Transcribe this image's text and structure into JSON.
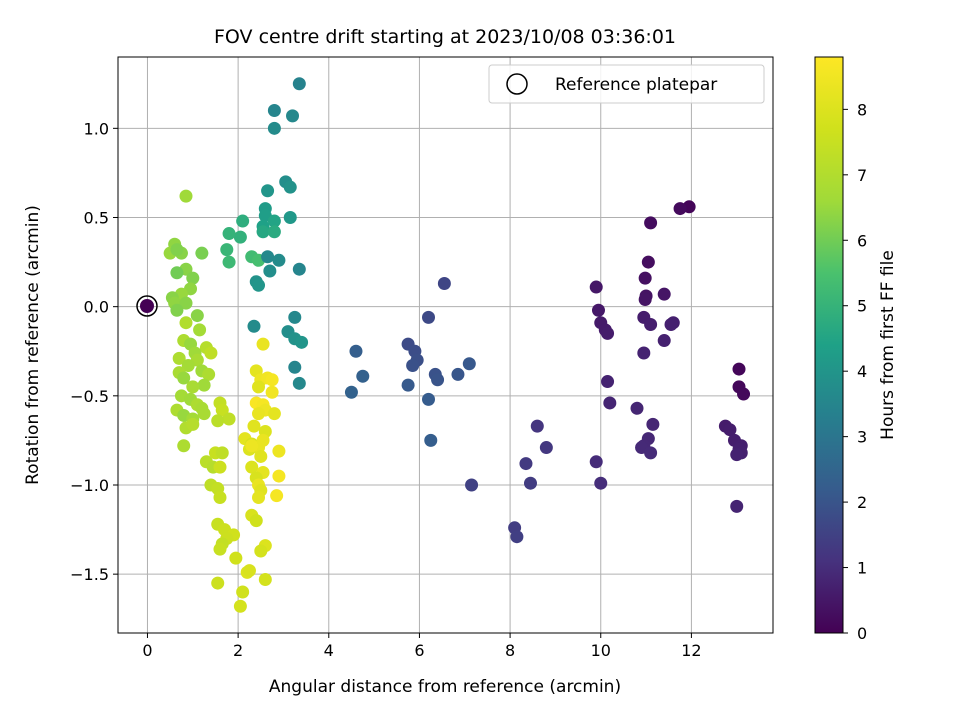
{
  "chart_data": {
    "type": "scatter",
    "title": "FOV centre drift starting at 2023/10/08 03:36:01",
    "xlabel": "Angular distance from reference (arcmin)",
    "ylabel": "Rotation from reference (arcmin)",
    "xlim": [
      -0.65,
      13.8
    ],
    "ylim": [
      -1.83,
      1.4
    ],
    "xticks": [
      0,
      2,
      4,
      6,
      8,
      10,
      12
    ],
    "yticks": [
      -1.5,
      -1.0,
      -0.5,
      0.0,
      0.5,
      1.0
    ],
    "xtick_labels": [
      "0",
      "2",
      "4",
      "6",
      "8",
      "10",
      "12"
    ],
    "ytick_labels": [
      "−1.5",
      "−1.0",
      "−0.5",
      "0.0",
      "0.5",
      "1.0"
    ],
    "grid": true,
    "legend": {
      "position": "top-right",
      "entries": [
        "Reference platepar"
      ]
    },
    "reference_point": {
      "x": 0.0,
      "y": 0.0
    },
    "colorbar": {
      "label": "Hours from first FF file",
      "range": [
        0,
        8.8
      ],
      "ticks": [
        0,
        1,
        2,
        3,
        4,
        5,
        6,
        7,
        8
      ],
      "tick_labels": [
        "0",
        "1",
        "2",
        "3",
        "4",
        "5",
        "6",
        "7",
        "8"
      ],
      "colormap": "viridis"
    },
    "series": [
      {
        "color_by": "hours",
        "points": [
          {
            "x": 11.95,
            "y": 0.56,
            "c": 0.1
          },
          {
            "x": 11.75,
            "y": 0.55,
            "c": 0.2
          },
          {
            "x": 11.1,
            "y": 0.47,
            "c": 0.25
          },
          {
            "x": 11.05,
            "y": 0.25,
            "c": 0.3
          },
          {
            "x": 10.98,
            "y": 0.16,
            "c": 0.35
          },
          {
            "x": 11.0,
            "y": 0.06,
            "c": 0.4
          },
          {
            "x": 10.98,
            "y": 0.04,
            "c": 0.42
          },
          {
            "x": 11.4,
            "y": 0.07,
            "c": 0.45
          },
          {
            "x": 9.9,
            "y": 0.11,
            "c": 0.5
          },
          {
            "x": 9.95,
            "y": -0.02,
            "c": 0.52
          },
          {
            "x": 10.0,
            "y": -0.09,
            "c": 0.55
          },
          {
            "x": 10.1,
            "y": -0.13,
            "c": 0.57
          },
          {
            "x": 10.15,
            "y": -0.15,
            "c": 0.6
          },
          {
            "x": 10.95,
            "y": -0.06,
            "c": 0.62
          },
          {
            "x": 11.1,
            "y": -0.1,
            "c": 0.65
          },
          {
            "x": 11.6,
            "y": -0.09,
            "c": 0.67
          },
          {
            "x": 11.55,
            "y": -0.1,
            "c": 0.7
          },
          {
            "x": 11.4,
            "y": -0.19,
            "c": 0.72
          },
          {
            "x": 10.95,
            "y": -0.26,
            "c": 0.75
          },
          {
            "x": 10.15,
            "y": -0.42,
            "c": 0.77
          },
          {
            "x": 10.2,
            "y": -0.54,
            "c": 0.8
          },
          {
            "x": 10.8,
            "y": -0.57,
            "c": 0.82
          },
          {
            "x": 11.15,
            "y": -0.66,
            "c": 0.85
          },
          {
            "x": 11.05,
            "y": -0.74,
            "c": 0.87
          },
          {
            "x": 10.95,
            "y": -0.78,
            "c": 0.9
          },
          {
            "x": 10.9,
            "y": -0.79,
            "c": 0.92
          },
          {
            "x": 11.1,
            "y": -0.82,
            "c": 0.95
          },
          {
            "x": 9.9,
            "y": -0.87,
            "c": 0.97
          },
          {
            "x": 10.0,
            "y": -0.99,
            "c": 1.0
          },
          {
            "x": 13.05,
            "y": -0.35,
            "c": 0.12
          },
          {
            "x": 13.05,
            "y": -0.45,
            "c": 0.15
          },
          {
            "x": 13.15,
            "y": -0.49,
            "c": 0.18
          },
          {
            "x": 12.75,
            "y": -0.67,
            "c": 0.6
          },
          {
            "x": 12.85,
            "y": -0.69,
            "c": 0.62
          },
          {
            "x": 12.95,
            "y": -0.75,
            "c": 0.65
          },
          {
            "x": 13.1,
            "y": -0.78,
            "c": 0.67
          },
          {
            "x": 13.05,
            "y": -0.8,
            "c": 0.7
          },
          {
            "x": 13.1,
            "y": -0.82,
            "c": 0.72
          },
          {
            "x": 13.0,
            "y": -0.83,
            "c": 0.75
          },
          {
            "x": 13.0,
            "y": -1.12,
            "c": 0.78
          },
          {
            "x": 8.6,
            "y": -0.67,
            "c": 1.2
          },
          {
            "x": 8.8,
            "y": -0.79,
            "c": 1.25
          },
          {
            "x": 8.35,
            "y": -0.88,
            "c": 1.3
          },
          {
            "x": 8.45,
            "y": -0.99,
            "c": 1.35
          },
          {
            "x": 8.1,
            "y": -1.24,
            "c": 1.4
          },
          {
            "x": 8.15,
            "y": -1.29,
            "c": 1.45
          },
          {
            "x": 7.15,
            "y": -1.0,
            "c": 1.5
          },
          {
            "x": 6.55,
            "y": 0.13,
            "c": 1.6
          },
          {
            "x": 6.2,
            "y": -0.06,
            "c": 1.7
          },
          {
            "x": 5.75,
            "y": -0.21,
            "c": 1.75
          },
          {
            "x": 5.9,
            "y": -0.25,
            "c": 1.8
          },
          {
            "x": 5.95,
            "y": -0.3,
            "c": 1.85
          },
          {
            "x": 5.85,
            "y": -0.33,
            "c": 1.9
          },
          {
            "x": 6.35,
            "y": -0.38,
            "c": 1.95
          },
          {
            "x": 6.4,
            "y": -0.41,
            "c": 2.0
          },
          {
            "x": 6.85,
            "y": -0.38,
            "c": 2.05
          },
          {
            "x": 7.1,
            "y": -0.32,
            "c": 2.1
          },
          {
            "x": 5.75,
            "y": -0.44,
            "c": 2.15
          },
          {
            "x": 6.2,
            "y": -0.52,
            "c": 2.2
          },
          {
            "x": 6.25,
            "y": -0.75,
            "c": 2.25
          },
          {
            "x": 4.6,
            "y": -0.25,
            "c": 2.3
          },
          {
            "x": 4.75,
            "y": -0.39,
            "c": 2.35
          },
          {
            "x": 4.5,
            "y": -0.48,
            "c": 2.4
          },
          {
            "x": 3.35,
            "y": 1.25,
            "c": 3.4
          },
          {
            "x": 2.8,
            "y": 1.1,
            "c": 3.5
          },
          {
            "x": 3.2,
            "y": 1.07,
            "c": 3.6
          },
          {
            "x": 2.8,
            "y": 1.0,
            "c": 3.7
          },
          {
            "x": 3.05,
            "y": 0.7,
            "c": 3.8
          },
          {
            "x": 3.15,
            "y": 0.67,
            "c": 3.9
          },
          {
            "x": 2.65,
            "y": 0.65,
            "c": 4.0
          },
          {
            "x": 3.15,
            "y": 0.5,
            "c": 4.1
          },
          {
            "x": 2.6,
            "y": 0.55,
            "c": 4.2
          },
          {
            "x": 2.6,
            "y": 0.51,
            "c": 4.3
          },
          {
            "x": 2.55,
            "y": 0.45,
            "c": 4.4
          },
          {
            "x": 2.8,
            "y": 0.48,
            "c": 4.5
          },
          {
            "x": 2.55,
            "y": 0.42,
            "c": 4.6
          },
          {
            "x": 2.8,
            "y": 0.42,
            "c": 4.7
          },
          {
            "x": 2.1,
            "y": 0.48,
            "c": 4.8
          },
          {
            "x": 2.05,
            "y": 0.39,
            "c": 4.9
          },
          {
            "x": 1.8,
            "y": 0.41,
            "c": 5.0
          },
          {
            "x": 1.75,
            "y": 0.32,
            "c": 5.1
          },
          {
            "x": 1.8,
            "y": 0.25,
            "c": 5.2
          },
          {
            "x": 2.3,
            "y": 0.28,
            "c": 5.3
          },
          {
            "x": 2.45,
            "y": 0.26,
            "c": 5.4
          },
          {
            "x": 2.65,
            "y": 0.28,
            "c": 3.6
          },
          {
            "x": 2.9,
            "y": 0.26,
            "c": 3.7
          },
          {
            "x": 2.7,
            "y": 0.2,
            "c": 3.8
          },
          {
            "x": 2.4,
            "y": 0.14,
            "c": 3.9
          },
          {
            "x": 2.45,
            "y": 0.12,
            "c": 4.0
          },
          {
            "x": 3.35,
            "y": 0.21,
            "c": 3.5
          },
          {
            "x": 3.25,
            "y": -0.06,
            "c": 3.6
          },
          {
            "x": 2.35,
            "y": -0.11,
            "c": 3.7
          },
          {
            "x": 3.1,
            "y": -0.14,
            "c": 3.8
          },
          {
            "x": 3.25,
            "y": -0.18,
            "c": 3.9
          },
          {
            "x": 3.4,
            "y": -0.2,
            "c": 4.0
          },
          {
            "x": 3.25,
            "y": -0.34,
            "c": 3.5
          },
          {
            "x": 3.35,
            "y": -0.43,
            "c": 3.6
          },
          {
            "x": 0.85,
            "y": 0.62,
            "c": 6.6
          },
          {
            "x": 0.6,
            "y": 0.35,
            "c": 6.4
          },
          {
            "x": 0.5,
            "y": 0.3,
            "c": 6.5
          },
          {
            "x": 0.75,
            "y": 0.3,
            "c": 6.3
          },
          {
            "x": 0.65,
            "y": 0.32,
            "c": 6.2
          },
          {
            "x": 1.2,
            "y": 0.3,
            "c": 6.1
          },
          {
            "x": 0.85,
            "y": 0.21,
            "c": 6.3
          },
          {
            "x": 0.65,
            "y": 0.19,
            "c": 6.0
          },
          {
            "x": 1.0,
            "y": 0.16,
            "c": 6.2
          },
          {
            "x": 0.95,
            "y": 0.1,
            "c": 6.4
          },
          {
            "x": 0.75,
            "y": 0.07,
            "c": 6.5
          },
          {
            "x": 0.55,
            "y": 0.05,
            "c": 6.3
          },
          {
            "x": 0.6,
            "y": 0.02,
            "c": 6.4
          },
          {
            "x": 0.85,
            "y": 0.02,
            "c": 6.3
          },
          {
            "x": 0.65,
            "y": -0.02,
            "c": 6.2
          },
          {
            "x": 1.1,
            "y": -0.05,
            "c": 6.3
          },
          {
            "x": 0.85,
            "y": -0.09,
            "c": 7.0
          },
          {
            "x": 1.15,
            "y": -0.13,
            "c": 6.7
          },
          {
            "x": 0.8,
            "y": -0.19,
            "c": 6.9
          },
          {
            "x": 0.95,
            "y": -0.21,
            "c": 6.5
          },
          {
            "x": 1.3,
            "y": -0.23,
            "c": 7.1
          },
          {
            "x": 1.4,
            "y": -0.26,
            "c": 7.3
          },
          {
            "x": 0.7,
            "y": -0.29,
            "c": 6.9
          },
          {
            "x": 1.05,
            "y": -0.26,
            "c": 6.6
          },
          {
            "x": 1.1,
            "y": -0.3,
            "c": 6.8
          },
          {
            "x": 0.9,
            "y": -0.33,
            "c": 6.7
          },
          {
            "x": 1.2,
            "y": -0.36,
            "c": 6.6
          },
          {
            "x": 0.7,
            "y": -0.37,
            "c": 6.8
          },
          {
            "x": 1.35,
            "y": -0.38,
            "c": 6.9
          },
          {
            "x": 0.8,
            "y": -0.4,
            "c": 6.5
          },
          {
            "x": 1.25,
            "y": -0.44,
            "c": 6.6
          },
          {
            "x": 1.0,
            "y": -0.45,
            "c": 6.8
          },
          {
            "x": 0.75,
            "y": -0.5,
            "c": 6.7
          },
          {
            "x": 0.95,
            "y": -0.52,
            "c": 6.6
          },
          {
            "x": 1.1,
            "y": -0.55,
            "c": 6.9
          },
          {
            "x": 1.2,
            "y": -0.57,
            "c": 6.8
          },
          {
            "x": 0.65,
            "y": -0.58,
            "c": 6.9
          },
          {
            "x": 0.8,
            "y": -0.61,
            "c": 6.5
          },
          {
            "x": 1.0,
            "y": -0.63,
            "c": 6.7
          },
          {
            "x": 1.25,
            "y": -0.6,
            "c": 6.8
          },
          {
            "x": 0.85,
            "y": -0.68,
            "c": 7.0
          },
          {
            "x": 1.0,
            "y": -0.66,
            "c": 7.1
          },
          {
            "x": 0.8,
            "y": -0.78,
            "c": 6.9
          },
          {
            "x": 1.3,
            "y": -0.87,
            "c": 7.2
          },
          {
            "x": 1.45,
            "y": -0.9,
            "c": 7.1
          },
          {
            "x": 1.4,
            "y": -1.0,
            "c": 7.3
          },
          {
            "x": 1.55,
            "y": -1.02,
            "c": 7.4
          },
          {
            "x": 1.6,
            "y": -1.07,
            "c": 7.5
          },
          {
            "x": 1.55,
            "y": -1.22,
            "c": 7.5
          },
          {
            "x": 1.7,
            "y": -1.25,
            "c": 7.6
          },
          {
            "x": 1.9,
            "y": -1.28,
            "c": 7.7
          },
          {
            "x": 1.75,
            "y": -1.3,
            "c": 7.6
          },
          {
            "x": 1.65,
            "y": -1.33,
            "c": 7.4
          },
          {
            "x": 1.6,
            "y": -1.36,
            "c": 7.5
          },
          {
            "x": 1.95,
            "y": -1.41,
            "c": 7.7
          },
          {
            "x": 1.55,
            "y": -1.55,
            "c": 7.6
          },
          {
            "x": 1.6,
            "y": -0.54,
            "c": 7.4
          },
          {
            "x": 1.65,
            "y": -0.58,
            "c": 7.5
          },
          {
            "x": 1.8,
            "y": -0.63,
            "c": 7.3
          },
          {
            "x": 1.55,
            "y": -0.64,
            "c": 7.2
          },
          {
            "x": 1.5,
            "y": -0.82,
            "c": 7.5
          },
          {
            "x": 1.6,
            "y": -0.9,
            "c": 7.6
          },
          {
            "x": 1.65,
            "y": -0.82,
            "c": 7.3
          },
          {
            "x": 2.05,
            "y": -1.68,
            "c": 7.8
          },
          {
            "x": 2.55,
            "y": -0.21,
            "c": 8.3
          },
          {
            "x": 2.4,
            "y": -0.36,
            "c": 8.2
          },
          {
            "x": 2.5,
            "y": -0.41,
            "c": 8.4
          },
          {
            "x": 2.65,
            "y": -0.4,
            "c": 8.5
          },
          {
            "x": 2.75,
            "y": -0.41,
            "c": 8.6
          },
          {
            "x": 2.45,
            "y": -0.45,
            "c": 8.1
          },
          {
            "x": 2.75,
            "y": -0.48,
            "c": 8.5
          },
          {
            "x": 2.4,
            "y": -0.54,
            "c": 8.7
          },
          {
            "x": 2.55,
            "y": -0.55,
            "c": 8.6
          },
          {
            "x": 2.6,
            "y": -0.58,
            "c": 8.4
          },
          {
            "x": 2.45,
            "y": -0.6,
            "c": 8.3
          },
          {
            "x": 2.8,
            "y": -0.6,
            "c": 8.2
          },
          {
            "x": 2.35,
            "y": -0.67,
            "c": 8.1
          },
          {
            "x": 2.6,
            "y": -0.7,
            "c": 8.0
          },
          {
            "x": 2.15,
            "y": -0.74,
            "c": 8.2
          },
          {
            "x": 2.3,
            "y": -0.77,
            "c": 7.9
          },
          {
            "x": 2.45,
            "y": -0.79,
            "c": 8.3
          },
          {
            "x": 2.25,
            "y": -0.8,
            "c": 8.0
          },
          {
            "x": 2.9,
            "y": -0.81,
            "c": 8.4
          },
          {
            "x": 2.5,
            "y": -0.84,
            "c": 8.1
          },
          {
            "x": 2.3,
            "y": -0.9,
            "c": 8.0
          },
          {
            "x": 2.55,
            "y": -0.93,
            "c": 8.2
          },
          {
            "x": 2.4,
            "y": -0.96,
            "c": 7.9
          },
          {
            "x": 2.9,
            "y": -0.95,
            "c": 8.6
          },
          {
            "x": 2.45,
            "y": -1.0,
            "c": 8.3
          },
          {
            "x": 2.5,
            "y": -1.03,
            "c": 8.1
          },
          {
            "x": 2.45,
            "y": -1.07,
            "c": 8.2
          },
          {
            "x": 2.85,
            "y": -1.06,
            "c": 8.6
          },
          {
            "x": 2.3,
            "y": -1.17,
            "c": 7.9
          },
          {
            "x": 2.4,
            "y": -1.2,
            "c": 7.7
          },
          {
            "x": 2.6,
            "y": -1.34,
            "c": 8.0
          },
          {
            "x": 2.5,
            "y": -1.37,
            "c": 7.8
          },
          {
            "x": 2.2,
            "y": -1.49,
            "c": 8.0
          },
          {
            "x": 2.25,
            "y": -1.48,
            "c": 7.9
          },
          {
            "x": 2.6,
            "y": -1.53,
            "c": 7.8
          },
          {
            "x": 2.1,
            "y": -1.6,
            "c": 7.7
          },
          {
            "x": 2.3,
            "y": -0.78,
            "c": 8.4
          },
          {
            "x": 2.55,
            "y": -0.75,
            "c": 8.3
          }
        ]
      }
    ]
  }
}
